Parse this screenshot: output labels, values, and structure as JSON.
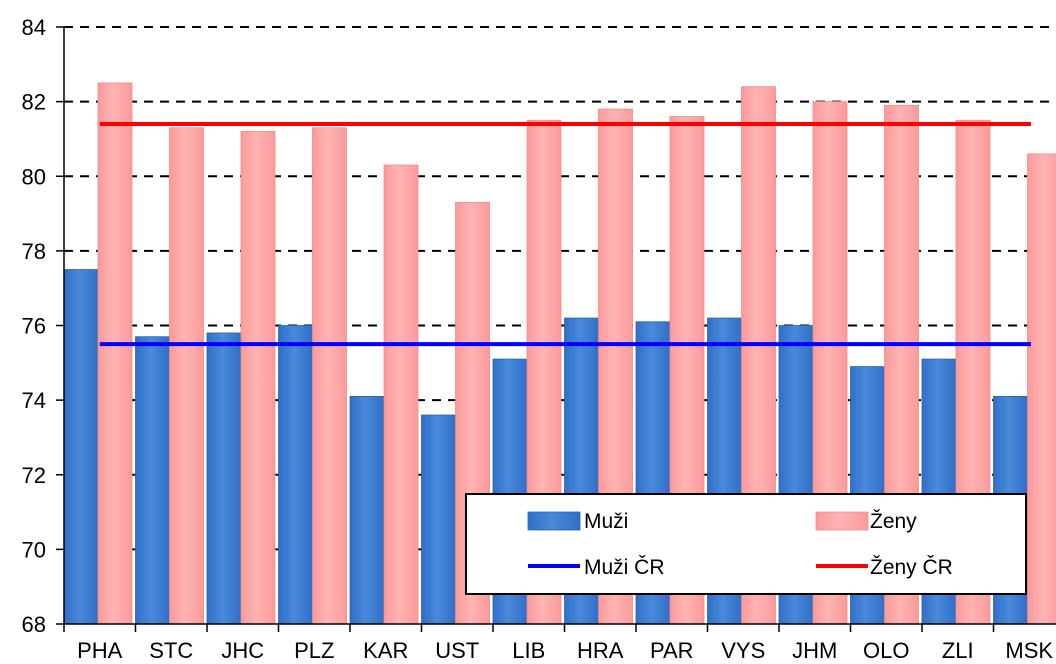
{
  "chart_data": {
    "type": "bar",
    "title": "",
    "xlabel": "",
    "ylabel": "",
    "categories": [
      "PHA",
      "STC",
      "JHC",
      "PLZ",
      "KAR",
      "UST",
      "LIB",
      "HRA",
      "PAR",
      "VYS",
      "JHM",
      "OLO",
      "ZLI",
      "MSK"
    ],
    "series": [
      {
        "name": "Muži",
        "color": "#2f6fc9",
        "values": [
          77.5,
          75.7,
          75.8,
          76.0,
          74.1,
          73.6,
          75.1,
          76.2,
          76.1,
          76.2,
          76.0,
          74.9,
          75.1,
          74.1
        ]
      },
      {
        "name": "Ženy",
        "color": "#fb9a9a",
        "values": [
          82.5,
          81.3,
          81.2,
          81.3,
          80.3,
          79.3,
          81.5,
          81.8,
          81.6,
          82.4,
          82.0,
          81.9,
          81.5,
          80.6
        ]
      }
    ],
    "reference_lines": [
      {
        "name": "Muži ČR",
        "value": 75.5,
        "color": "#0000ff"
      },
      {
        "name": "Ženy ČR",
        "value": 81.4,
        "color": "#ff0000"
      }
    ],
    "ylim": [
      68,
      84
    ],
    "yticks": [
      "68",
      "70",
      "72",
      "74",
      "76",
      "78",
      "80",
      "82",
      "84"
    ],
    "grid": "dashed horizontal",
    "legend_position": "bottom-right"
  }
}
